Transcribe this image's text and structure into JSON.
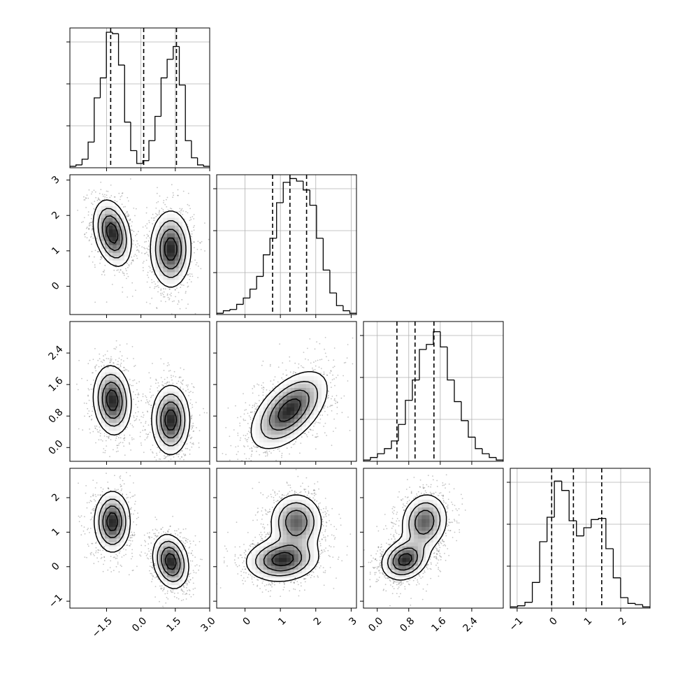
{
  "chart_data": {
    "type": "corner",
    "parameters": 4,
    "grid": true,
    "colors": {
      "line": "#000000",
      "grid": "#b0b0b0",
      "density_max": "#000000",
      "density_min": "#ffffff"
    },
    "axes": {
      "x": [
        {
          "range": [
            -3.1,
            3.0
          ],
          "ticks": [
            {
              "v": -1.5,
              "label": "−1.5"
            },
            {
              "v": 0.0,
              "label": "0.0"
            },
            {
              "v": 1.5,
              "label": "1.5"
            },
            {
              "v": 3.0,
              "label": "3.0"
            }
          ]
        },
        {
          "range": [
            -0.8,
            3.15
          ],
          "ticks": [
            {
              "v": 0,
              "label": "0"
            },
            {
              "v": 1,
              "label": "1"
            },
            {
              "v": 2,
              "label": "2"
            },
            {
              "v": 3,
              "label": "3"
            }
          ]
        },
        {
          "range": [
            -0.35,
            3.2
          ],
          "ticks": [
            {
              "v": 0.0,
              "label": "0.0"
            },
            {
              "v": 0.8,
              "label": "0.8"
            },
            {
              "v": 1.6,
              "label": "1.6"
            },
            {
              "v": 2.4,
              "label": "2.4"
            }
          ]
        },
        {
          "range": [
            -1.2,
            2.85
          ],
          "ticks": [
            {
              "v": -1,
              "label": "−1"
            },
            {
              "v": 0,
              "label": "0"
            },
            {
              "v": 1,
              "label": "1"
            },
            {
              "v": 2,
              "label": "2"
            }
          ]
        }
      ],
      "y": [
        null,
        {
          "range": [
            -0.8,
            3.15
          ],
          "ticks": [
            {
              "v": 0,
              "label": "0"
            },
            {
              "v": 1,
              "label": "1"
            },
            {
              "v": 2,
              "label": "2"
            },
            {
              "v": 3,
              "label": "3"
            }
          ]
        },
        {
          "range": [
            -0.35,
            3.2
          ],
          "ticks": [
            {
              "v": 0.0,
              "label": "0.0"
            },
            {
              "v": 0.8,
              "label": "0.8"
            },
            {
              "v": 1.6,
              "label": "1.6"
            },
            {
              "v": 2.4,
              "label": "2.4"
            }
          ]
        },
        {
          "range": [
            -1.2,
            2.85
          ],
          "ticks": [
            {
              "v": -1,
              "label": "−1"
            },
            {
              "v": 0,
              "label": "0"
            },
            {
              "v": 1,
              "label": "1"
            },
            {
              "v": 2,
              "label": "2"
            }
          ]
        }
      ]
    },
    "histograms": [
      {
        "x_min": -3.1,
        "x_max": 3.0,
        "counts": [
          1,
          2,
          6,
          18,
          49,
          63,
          95,
          94,
          72,
          32,
          12,
          3,
          5,
          19,
          36,
          63,
          76,
          85,
          58,
          19,
          7,
          2,
          1
        ],
        "quantiles": [
          -1.32,
          0.12,
          1.55
        ],
        "ymax": 98
      },
      {
        "x_min": -0.8,
        "x_max": 3.15,
        "counts": [
          1,
          3,
          4,
          8,
          13,
          20,
          30,
          47,
          60,
          88,
          104,
          107,
          105,
          98,
          86,
          60,
          35,
          17,
          7,
          3,
          1
        ],
        "quantiles": [
          0.78,
          1.27,
          1.74
        ],
        "ymax": 110
      },
      {
        "x_min": -0.35,
        "x_max": 3.2,
        "counts": [
          1,
          3,
          6,
          10,
          16,
          29,
          48,
          64,
          88,
          92,
          102,
          90,
          64,
          47,
          32,
          19,
          10,
          6,
          3,
          1
        ],
        "quantiles": [
          0.5,
          0.96,
          1.44
        ],
        "ymax": 110
      },
      {
        "x_min": -1.2,
        "x_max": 2.85,
        "counts": [
          1,
          2,
          5,
          22,
          57,
          78,
          109,
          101,
          75,
          62,
          69,
          76,
          77,
          51,
          26,
          9,
          4,
          3,
          1
        ],
        "quantiles": [
          0.0,
          0.63,
          1.45
        ],
        "ymax": 120
      }
    ],
    "pairs": [
      {
        "x": 0,
        "y": 1,
        "modes": [
          {
            "cx": -1.25,
            "cy": 1.5,
            "sx": 0.42,
            "sy": 0.48,
            "rho": -0.3
          },
          {
            "cx": 1.3,
            "cy": 1.05,
            "sx": 0.45,
            "sy": 0.55,
            "rho": 0.0
          }
        ]
      },
      {
        "x": 0,
        "y": 2,
        "modes": [
          {
            "cx": -1.25,
            "cy": 1.2,
            "sx": 0.42,
            "sy": 0.45,
            "rho": -0.1
          },
          {
            "cx": 1.3,
            "cy": 0.7,
            "sx": 0.42,
            "sy": 0.45,
            "rho": 0.0
          }
        ]
      },
      {
        "x": 0,
        "y": 3,
        "modes": [
          {
            "cx": -1.25,
            "cy": 1.3,
            "sx": 0.4,
            "sy": 0.45,
            "rho": 0.0
          },
          {
            "cx": 1.3,
            "cy": 0.15,
            "sx": 0.4,
            "sy": 0.4,
            "rho": -0.2
          }
        ]
      },
      {
        "x": 1,
        "y": 2,
        "modes": [
          {
            "cx": 1.25,
            "cy": 0.95,
            "sx": 0.55,
            "sy": 0.5,
            "rho": 0.55
          }
        ]
      },
      {
        "x": 1,
        "y": 3,
        "modes": [
          {
            "cx": 1.05,
            "cy": 0.2,
            "sx": 0.52,
            "sy": 0.32,
            "rho": 0.1,
            "w": 1.2
          },
          {
            "cx": 1.45,
            "cy": 1.3,
            "sx": 0.38,
            "sy": 0.42,
            "rho": 0.0
          }
        ]
      },
      {
        "x": 2,
        "y": 3,
        "modes": [
          {
            "cx": 0.7,
            "cy": 0.2,
            "sx": 0.3,
            "sy": 0.3,
            "rho": 0.2,
            "w": 1.2
          },
          {
            "cx": 1.2,
            "cy": 1.3,
            "sx": 0.3,
            "sy": 0.42,
            "rho": 0.1
          }
        ]
      }
    ]
  }
}
